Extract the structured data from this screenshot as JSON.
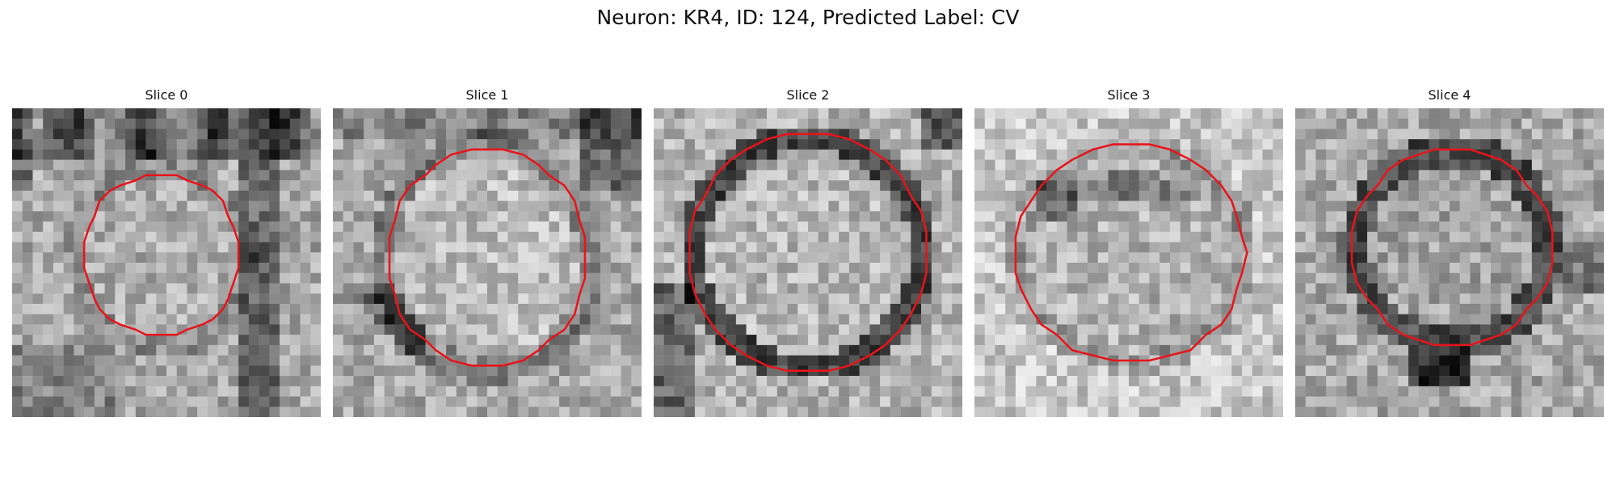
{
  "figure": {
    "title": "Neuron: KR4, ID: 124, Predicted Label: CV",
    "contour_color": "#e8141a",
    "colormap": "grayscale",
    "panels": [
      {
        "title": "Slice 0",
        "membrane": "left and right dark bands",
        "seed": 11
      },
      {
        "title": "Slice 1",
        "membrane": "bright interior, faint ring",
        "seed": 29
      },
      {
        "title": "Slice 2",
        "membrane": "dark ring around bright core",
        "seed": 47
      },
      {
        "title": "Slice 3",
        "membrane": "light background, mottled core",
        "seed": 83
      },
      {
        "title": "Slice 4",
        "membrane": "dark ring with dark bottom patch",
        "seed": 101
      }
    ]
  }
}
